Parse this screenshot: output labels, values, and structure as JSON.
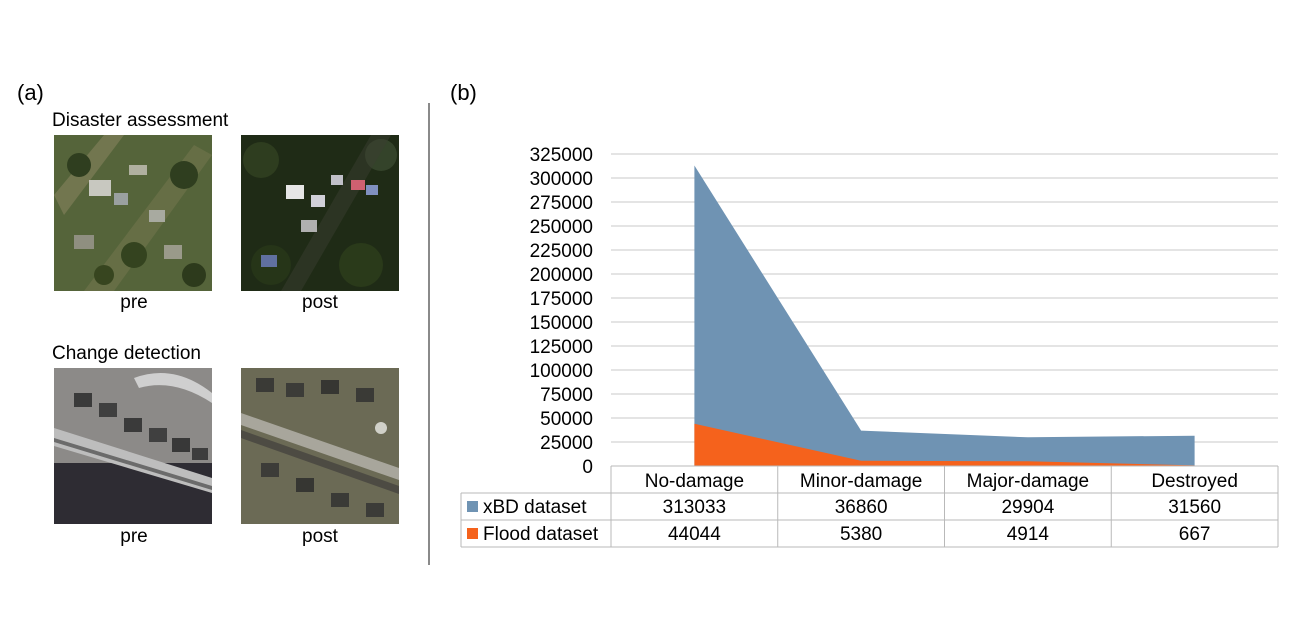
{
  "panels": {
    "a": {
      "label": "(a)",
      "sections": [
        {
          "title": "Disaster assessment",
          "captions": [
            "pre",
            "post"
          ]
        },
        {
          "title": "Change detection",
          "captions": [
            "pre",
            "post"
          ]
        }
      ]
    },
    "b": {
      "label": "(b)"
    }
  },
  "colors": {
    "xbd": "#6f93b3",
    "flood": "#f5621c",
    "grid": "#c8c8c8",
    "table_border": "#b9b9b9"
  },
  "chart_data": {
    "type": "area",
    "categories": [
      "No-damage",
      "Minor-damage",
      "Major-damage",
      "Destroyed"
    ],
    "series": [
      {
        "name": "xBD dataset",
        "values": [
          313033,
          36860,
          29904,
          31560
        ],
        "color": "#6f93b3"
      },
      {
        "name": "Flood dataset",
        "values": [
          44044,
          5380,
          4914,
          667
        ],
        "color": "#f5621c"
      }
    ],
    "yticks": [
      "325000",
      "300000",
      "275000",
      "250000",
      "225000",
      "200000",
      "175000",
      "150000",
      "125000",
      "100000",
      "75000",
      "50000",
      "25000",
      "0"
    ],
    "ylim": [
      0,
      325000
    ],
    "grid": true,
    "legend": "data-table",
    "table": {
      "rows": [
        {
          "name": "xBD dataset",
          "values": [
            "313033",
            "36860",
            "29904",
            "31560"
          ]
        },
        {
          "name": "Flood dataset",
          "values": [
            "44044",
            "5380",
            "4914",
            "667"
          ]
        }
      ]
    }
  }
}
